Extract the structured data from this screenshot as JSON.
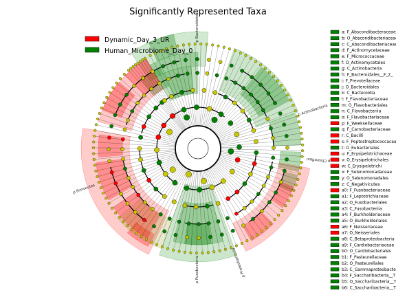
{
  "chart_data": {
    "type": "cladogram",
    "title": "Significantly Represented Taxa",
    "groups": [
      {
        "name": "Dynamic_Day_3_UR",
        "color": "#ff0000"
      },
      {
        "name": "Human_Microbiome_Day_0",
        "color": "#008000"
      }
    ],
    "non_significant_color": "#c8c800",
    "phylum_labels": [
      "p Bacteroidetes",
      "p Actinobacteria",
      "p Chloroflexi",
      "p Proteobacteria",
      "p Fusobacteria",
      "p Firmicutes"
    ],
    "key_entries": [
      {
        "label": "a: F_Abscondibacteraceae_ ...",
        "group": "Human_Microbiome_Day_0"
      },
      {
        "label": "b: O_Abscondibacteriaceae_ ...",
        "group": "Human_Microbiome_Day_0"
      },
      {
        "label": "c: C_Abscondibacteriaceae_ ...",
        "group": "Human_Microbiome_Day_0"
      },
      {
        "label": "d: F_Actinomycetaceae",
        "group": "Human_Microbiome_Day_0"
      },
      {
        "label": "e: F_Micrococcaceae",
        "group": "Human_Microbiome_Day_0"
      },
      {
        "label": "f: O_Actinomycetales",
        "group": "Human_Microbiome_Day_0"
      },
      {
        "label": "g: C_Actinobacteria",
        "group": "Human_Microbiome_Day_0"
      },
      {
        "label": "h: F_Bacteroidales__F_2_",
        "group": "Human_Microbiome_Day_0"
      },
      {
        "label": "i: F_Prevotellaceae",
        "group": "Human_Microbiome_Day_0"
      },
      {
        "label": "j: O_Bacteroidales",
        "group": "Human_Microbiome_Day_0"
      },
      {
        "label": "k: C_Bacteroidia",
        "group": "Human_Microbiome_Day_0"
      },
      {
        "label": "l: F_Flavobacteriaceae",
        "group": "Human_Microbiome_Day_0"
      },
      {
        "label": "m: O_Flavobacteriales",
        "group": "Human_Microbiome_Day_0"
      },
      {
        "label": "n: C_Flavobacteriia",
        "group": "Human_Microbiome_Day_0"
      },
      {
        "label": "o: F_Flavobacteriaceae",
        "group": "Human_Microbiome_Day_0"
      },
      {
        "label": "p: F_Weeksellaceae",
        "group": "Dynamic_Day_3_UR"
      },
      {
        "label": "q: F_Carnobacteriaceae",
        "group": "Human_Microbiome_Day_0"
      },
      {
        "label": "r: C_Bacilli",
        "group": "Dynamic_Day_3_UR"
      },
      {
        "label": "s: F_Peptostreptococcaceae",
        "group": "Dynamic_Day_3_UR"
      },
      {
        "label": "t: O_Eubacteriales",
        "group": "Human_Microbiome_Day_0"
      },
      {
        "label": "u: F_Erysipelotrichaceae",
        "group": "Dynamic_Day_3_UR"
      },
      {
        "label": "v: O_Erysipelotrichales",
        "group": "Dynamic_Day_3_UR"
      },
      {
        "label": "w: C_Erysipelotrichi",
        "group": "Dynamic_Day_3_UR"
      },
      {
        "label": "x: F_Selenomonadaceae",
        "group": "Human_Microbiome_Day_0"
      },
      {
        "label": "y: O_Selenomonadales",
        "group": "Human_Microbiome_Day_0"
      },
      {
        "label": "z: C_Negativicutes",
        "group": "Human_Microbiome_Day_0"
      },
      {
        "label": "a0: F_Fusobacteriaceae",
        "group": "Dynamic_Day_3_UR"
      },
      {
        "label": "a1: F_Leptotrichiaceae",
        "group": "Human_Microbiome_Day_0"
      },
      {
        "label": "a2: O_Fusobacteriales",
        "group": "Human_Microbiome_Day_0"
      },
      {
        "label": "a3: C_Fusobacteriia",
        "group": "Human_Microbiome_Day_0"
      },
      {
        "label": "a4: F_Burkholderiaceae",
        "group": "Human_Microbiome_Day_0"
      },
      {
        "label": "a5: O_Burkholderiales",
        "group": "Human_Microbiome_Day_0"
      },
      {
        "label": "a6: F_Neisseriaceae",
        "group": "Dynamic_Day_3_UR"
      },
      {
        "label": "a7: O_Neisseriales",
        "group": "Dynamic_Day_3_UR"
      },
      {
        "label": "a8: C_Betaproteobacteria",
        "group": "Human_Microbiome_Day_0"
      },
      {
        "label": "a9: F_Cardiobacteriaceae",
        "group": "Human_Microbiome_Day_0"
      },
      {
        "label": "b0: O_Cardiobacteriales",
        "group": "Human_Microbiome_Day_0"
      },
      {
        "label": "b1: F_Pasteurellaceae",
        "group": "Human_Microbiome_Day_0"
      },
      {
        "label": "b2: O_Pasteurellales",
        "group": "Human_Microbiome_Day_0"
      },
      {
        "label": "b3: C_Gammaproteobacteria",
        "group": "Human_Microbiome_Day_0"
      },
      {
        "label": "b4: F_Saccharibacteria__T ...",
        "group": "Human_Microbiome_Day_0"
      },
      {
        "label": "b5: O_Saccharibacteria__T ...",
        "group": "Human_Microbiome_Day_0"
      },
      {
        "label": "b6: C_Saccharibacteria__T ...",
        "group": "Human_Microbiome_Day_0"
      }
    ]
  }
}
